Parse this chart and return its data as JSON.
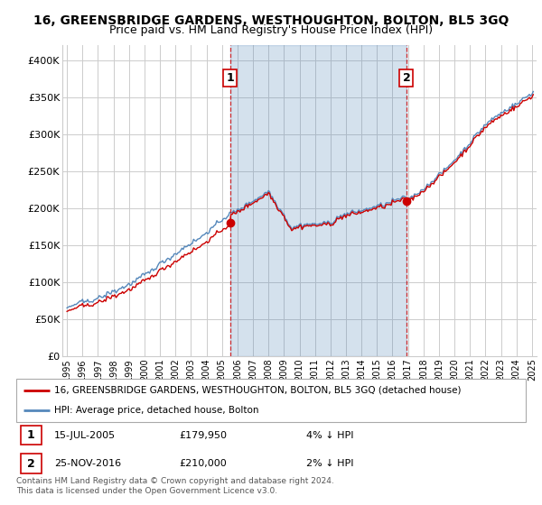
{
  "title": "16, GREENSBRIDGE GARDENS, WESTHOUGHTON, BOLTON, BL5 3GQ",
  "subtitle": "Price paid vs. HM Land Registry's House Price Index (HPI)",
  "title_fontsize": 10,
  "subtitle_fontsize": 9,
  "background_color": "#ffffff",
  "plot_bg_color": "#ffffff",
  "grid_color": "#cccccc",
  "shade_color": "#ddeeff",
  "ylim": [
    0,
    420000
  ],
  "xlim_start": 1994.7,
  "xlim_end": 2025.3,
  "yticks": [
    0,
    50000,
    100000,
    150000,
    200000,
    250000,
    300000,
    350000,
    400000
  ],
  "ytick_labels": [
    "£0",
    "£50K",
    "£100K",
    "£150K",
    "£200K",
    "£250K",
    "£300K",
    "£350K",
    "£400K"
  ],
  "xtick_years": [
    1995,
    1996,
    1997,
    1998,
    1999,
    2000,
    2001,
    2002,
    2003,
    2004,
    2005,
    2006,
    2007,
    2008,
    2009,
    2010,
    2011,
    2012,
    2013,
    2014,
    2015,
    2016,
    2017,
    2018,
    2019,
    2020,
    2021,
    2022,
    2023,
    2024,
    2025
  ],
  "hpi_color": "#5588bb",
  "property_color": "#cc0000",
  "dashed_line_color": "#cc0000",
  "marker1_x": 2005.54,
  "marker1_y": 179950,
  "marker1_label": "1",
  "marker1_date": "15-JUL-2005",
  "marker1_price": "£179,950",
  "marker1_hpi": "4% ↓ HPI",
  "marker2_x": 2016.9,
  "marker2_y": 210000,
  "marker2_label": "2",
  "marker2_date": "25-NOV-2016",
  "marker2_price": "£210,000",
  "marker2_hpi": "2% ↓ HPI",
  "legend_property_label": "16, GREENSBRIDGE GARDENS, WESTHOUGHTON, BOLTON, BL5 3GQ (detached house)",
  "legend_hpi_label": "HPI: Average price, detached house, Bolton",
  "footer": "Contains HM Land Registry data © Crown copyright and database right 2024.\nThis data is licensed under the Open Government Licence v3.0."
}
